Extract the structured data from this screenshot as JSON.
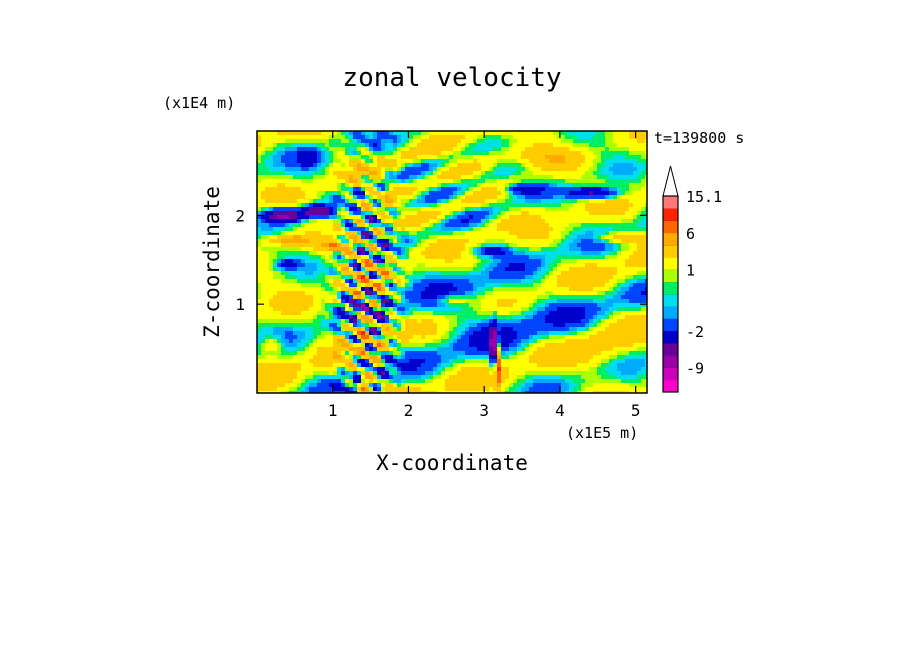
{
  "chart_data": {
    "type": "heatmap",
    "title": "zonal velocity",
    "xlabel": "X-coordinate",
    "ylabel": "Z-coordinate",
    "x_unit": "(x1E5 m)",
    "y_unit": "(x1E4 m)",
    "time_label": "t=139800 s",
    "xlim": [
      0,
      5.15
    ],
    "ylim": [
      0,
      2.95
    ],
    "x_ticks": [
      1,
      2,
      3,
      4,
      5
    ],
    "y_ticks": [
      1,
      2
    ],
    "colorbar": {
      "levels": [
        -15,
        -12,
        -9,
        -6,
        -4,
        -2,
        -1,
        -0.5,
        0,
        0.5,
        1,
        2,
        4,
        6,
        9,
        12,
        15.1
      ],
      "colors": [
        "#ff00cc",
        "#cc00bb",
        "#9900aa",
        "#660099",
        "#0000cc",
        "#0044ff",
        "#00aaff",
        "#00ddee",
        "#00ee66",
        "#aaff00",
        "#ffff00",
        "#ffcc00",
        "#ffaa00",
        "#ff6600",
        "#ff2200",
        "#ff7777",
        "#ffaaaa"
      ],
      "labels": [
        {
          "value": 15.1,
          "text": "15.1"
        },
        {
          "value": 6,
          "text": "6"
        },
        {
          "value": 1,
          "text": "1"
        },
        {
          "value": -2,
          "text": "-2"
        },
        {
          "value": -9,
          "text": "-9"
        }
      ],
      "extend_top": true
    }
  }
}
